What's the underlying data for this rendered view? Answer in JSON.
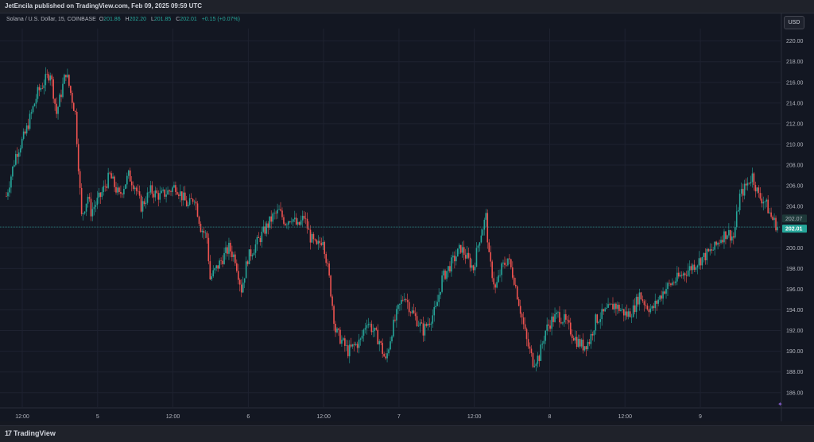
{
  "header": {
    "published": "JetEncila published on TradingView.com, Feb 09, 2025 09:59 UTC"
  },
  "legend": {
    "symbol": "Solana / U.S. Dollar, 15, COINBASE",
    "o_key": "O",
    "o": "201.86",
    "h_key": "H",
    "h": "202.20",
    "l_key": "L",
    "l": "201.85",
    "c_key": "C",
    "c": "202.01",
    "chg": "+0.15 (+0.07%)"
  },
  "currency_button": "USD",
  "footer": {
    "brand": "TradingView"
  },
  "colors": {
    "up": "#26a69a",
    "down": "#ef5350",
    "grid": "#1e2230",
    "bg": "#131722"
  },
  "chart_data": {
    "type": "candlestick",
    "interval": "15",
    "y_ticks": [
      "186.00",
      "188.00",
      "190.00",
      "192.00",
      "194.00",
      "196.00",
      "198.00",
      "200.00",
      "202.00",
      "204.00",
      "206.00",
      "208.00",
      "210.00",
      "212.00",
      "214.00",
      "216.00",
      "218.00",
      "220.00"
    ],
    "ylim": [
      184.6,
      221.2
    ],
    "x_ticks": [
      "12:00",
      "5",
      "12:00",
      "6",
      "12:00",
      "7",
      "12:00",
      "8",
      "12:00",
      "9"
    ],
    "price_labels": [
      {
        "value": "202.07",
        "kind": "secondary"
      },
      {
        "value": "202.01",
        "kind": "last"
      }
    ],
    "last_price": 202.01,
    "close_path": [
      [
        0,
        205.0
      ],
      [
        6,
        209
      ],
      [
        12,
        211
      ],
      [
        20,
        215
      ],
      [
        28,
        217
      ],
      [
        32,
        213
      ],
      [
        38,
        217
      ],
      [
        44,
        213
      ],
      [
        48,
        203
      ],
      [
        52,
        205
      ],
      [
        54,
        203.5
      ],
      [
        60,
        205
      ],
      [
        66,
        207
      ],
      [
        72,
        205
      ],
      [
        78,
        207
      ],
      [
        82,
        206
      ],
      [
        86,
        204
      ],
      [
        92,
        205.5
      ],
      [
        98,
        205
      ],
      [
        104,
        205.5
      ],
      [
        108,
        206
      ],
      [
        112,
        205
      ],
      [
        116,
        204
      ],
      [
        120,
        205
      ],
      [
        124,
        202
      ],
      [
        128,
        201
      ],
      [
        130,
        197
      ],
      [
        134,
        198
      ],
      [
        138,
        199
      ],
      [
        142,
        200
      ],
      [
        146,
        199
      ],
      [
        150,
        196
      ],
      [
        154,
        199
      ],
      [
        158,
        200
      ],
      [
        162,
        201
      ],
      [
        166,
        202
      ],
      [
        170,
        203
      ],
      [
        174,
        203.5
      ],
      [
        178,
        202.5
      ],
      [
        182,
        203
      ],
      [
        186,
        202
      ],
      [
        190,
        203
      ],
      [
        194,
        201
      ],
      [
        198,
        200
      ],
      [
        202,
        201
      ],
      [
        206,
        197
      ],
      [
        210,
        192
      ],
      [
        214,
        191
      ],
      [
        218,
        190
      ],
      [
        222,
        190.5
      ],
      [
        226,
        191
      ],
      [
        230,
        193
      ],
      [
        234,
        192
      ],
      [
        238,
        191
      ],
      [
        242,
        189
      ],
      [
        246,
        192
      ],
      [
        250,
        194
      ],
      [
        254,
        195.5
      ],
      [
        258,
        194
      ],
      [
        262,
        193
      ],
      [
        266,
        192
      ],
      [
        270,
        193
      ],
      [
        274,
        194
      ],
      [
        278,
        197
      ],
      [
        282,
        198
      ],
      [
        286,
        199
      ],
      [
        290,
        200
      ],
      [
        294,
        199
      ],
      [
        298,
        198
      ],
      [
        302,
        201
      ],
      [
        306,
        203
      ],
      [
        308,
        199
      ],
      [
        312,
        196
      ],
      [
        316,
        198
      ],
      [
        320,
        199
      ],
      [
        324,
        197
      ],
      [
        328,
        194
      ],
      [
        332,
        191
      ],
      [
        336,
        189
      ],
      [
        340,
        189.5
      ],
      [
        344,
        192
      ],
      [
        348,
        193
      ],
      [
        352,
        193.5
      ],
      [
        356,
        193
      ],
      [
        360,
        192
      ],
      [
        364,
        191
      ],
      [
        368,
        190.5
      ],
      [
        372,
        191
      ],
      [
        376,
        193
      ],
      [
        380,
        193.5
      ],
      [
        384,
        194
      ],
      [
        388,
        194.5
      ],
      [
        392,
        194
      ],
      [
        396,
        193.5
      ],
      [
        400,
        194
      ],
      [
        404,
        195.5
      ],
      [
        408,
        194.5
      ],
      [
        412,
        194
      ],
      [
        416,
        195
      ],
      [
        420,
        196
      ],
      [
        424,
        196.5
      ],
      [
        428,
        197
      ],
      [
        432,
        197.5
      ],
      [
        436,
        198
      ],
      [
        440,
        198.5
      ],
      [
        444,
        199
      ],
      [
        448,
        199.5
      ],
      [
        452,
        200
      ],
      [
        456,
        201
      ],
      [
        460,
        201.5
      ],
      [
        464,
        201
      ],
      [
        468,
        205
      ],
      [
        472,
        206
      ],
      [
        476,
        207
      ],
      [
        480,
        205
      ],
      [
        484,
        204.5
      ],
      [
        488,
        203
      ],
      [
        492,
        202.01
      ]
    ]
  }
}
